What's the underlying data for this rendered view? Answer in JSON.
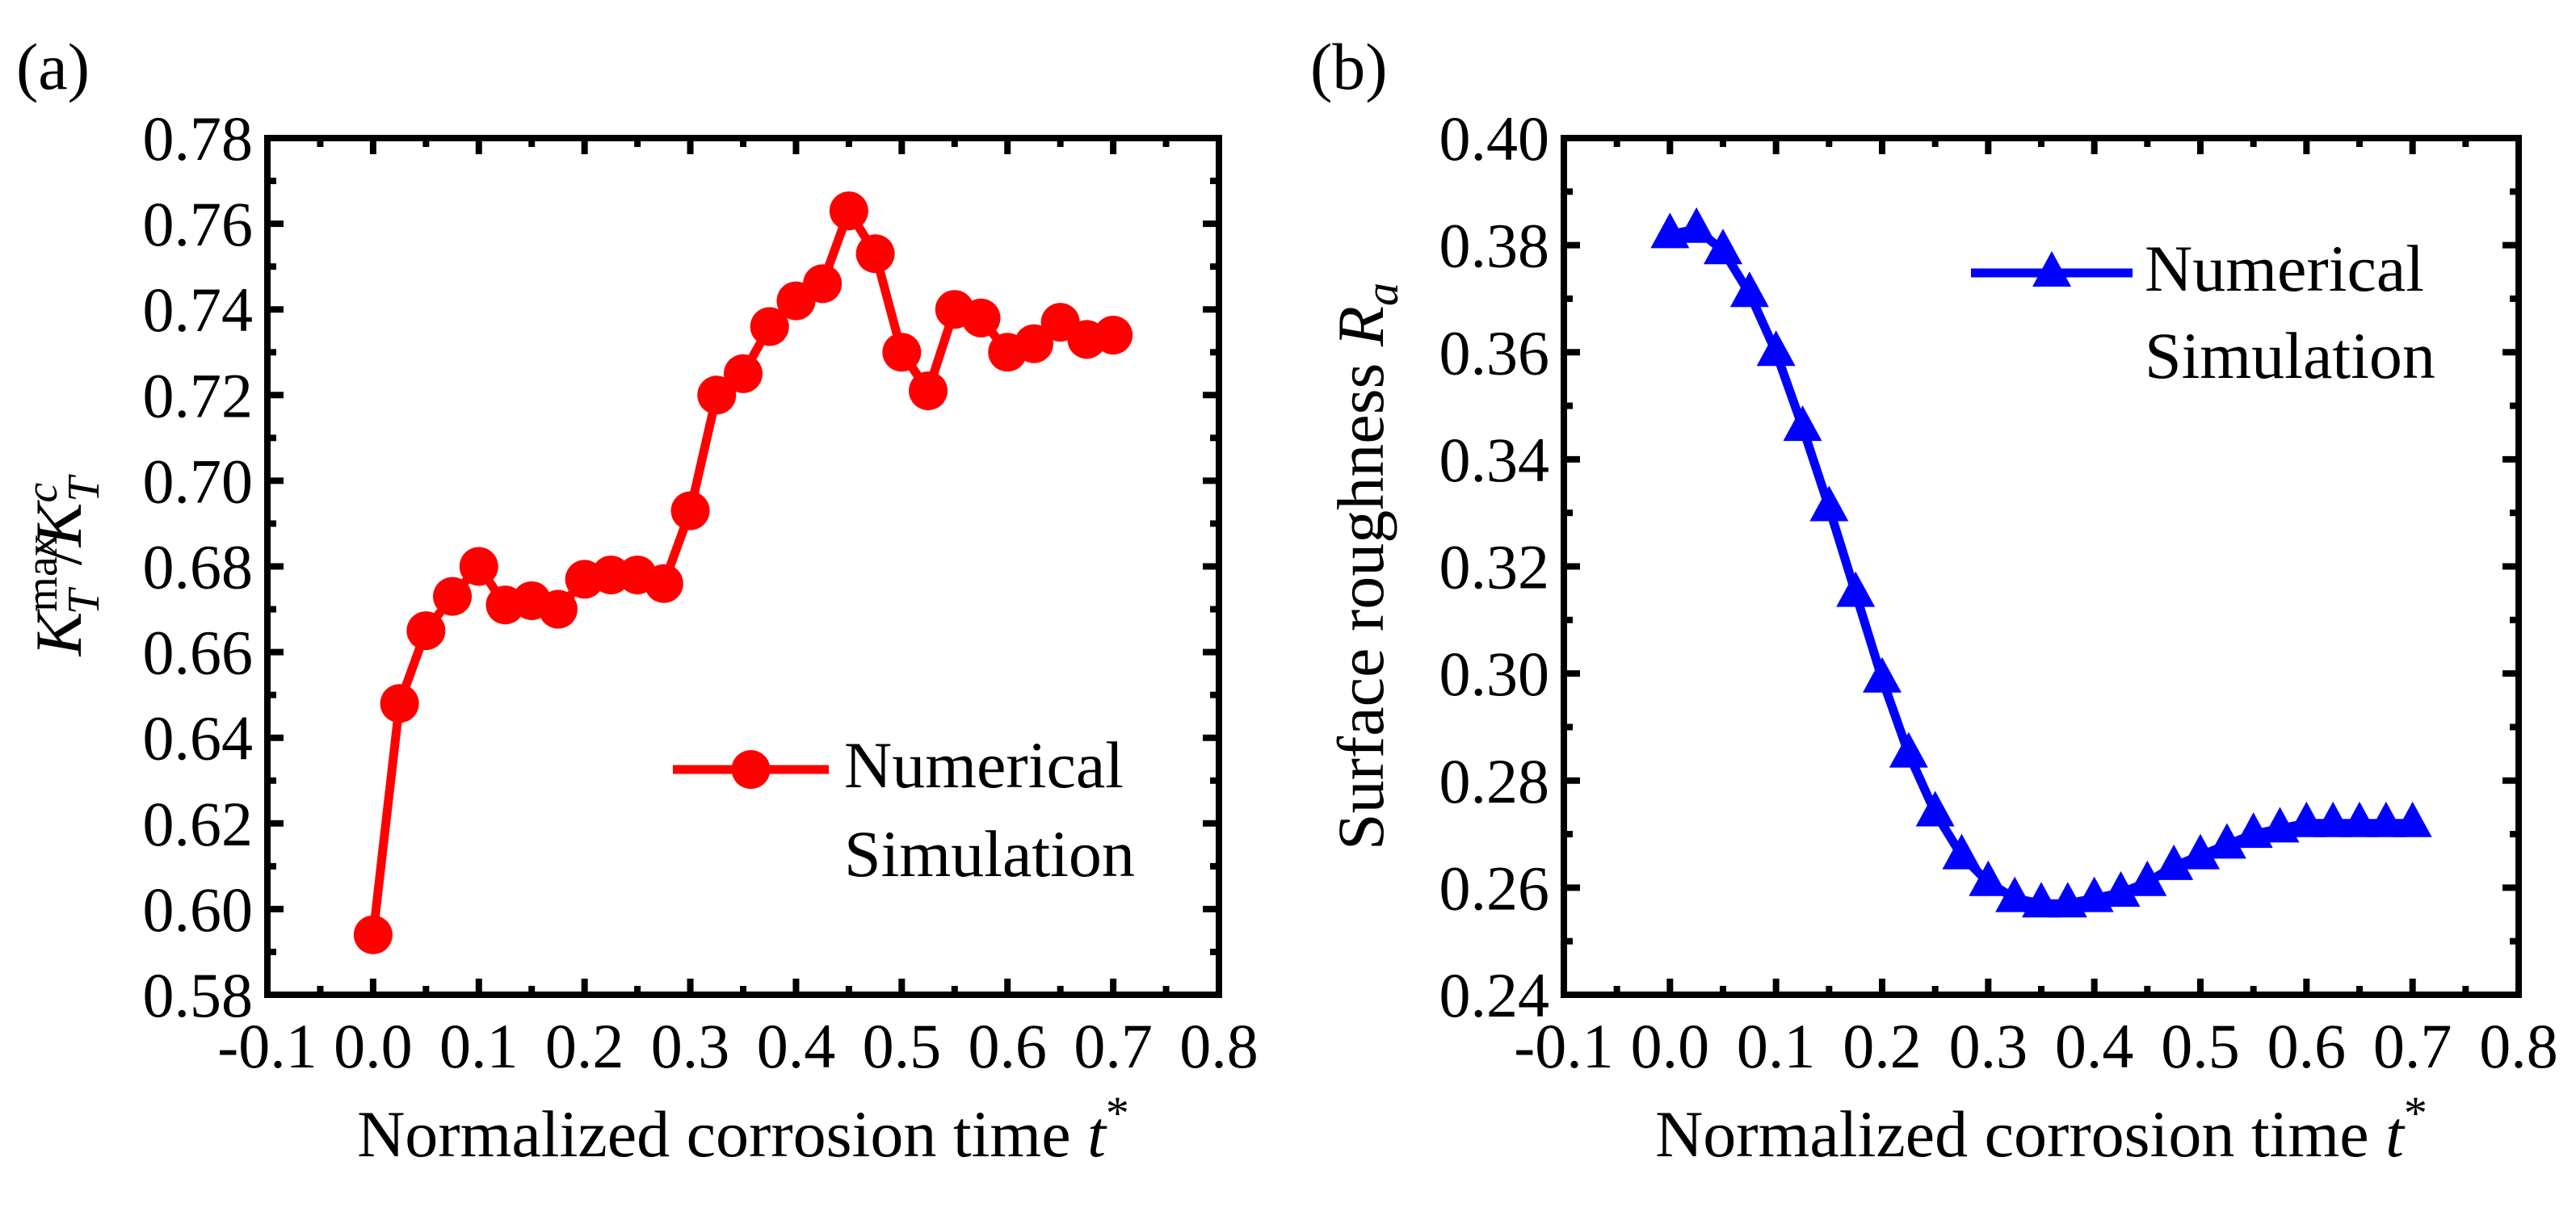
{
  "chart_data": [
    {
      "type": "line",
      "panel_label": "(a)",
      "title": "",
      "xlabel": "Normalized corrosion time",
      "xlabel_var": "t",
      "xlabel_sup": "*",
      "ylabel": {
        "base": "K",
        "sup": "max",
        "sub": "T",
        "sep": "/",
        "base2": "K",
        "sup2": "c",
        "sub2": "T"
      },
      "xlim": [
        -0.1,
        0.8
      ],
      "ylim": [
        0.58,
        0.78
      ],
      "xticks": [
        "-0.1",
        "0.0",
        "0.1",
        "0.2",
        "0.3",
        "0.4",
        "0.5",
        "0.6",
        "0.7",
        "0.8"
      ],
      "yticks": [
        "0.58",
        "0.60",
        "0.62",
        "0.64",
        "0.66",
        "0.68",
        "0.70",
        "0.72",
        "0.74",
        "0.76",
        "0.78"
      ],
      "legend": {
        "placement": "center-right",
        "line1": "Numerical",
        "line2": "Simulation"
      },
      "series": [
        {
          "name": "Numerical Simulation",
          "color": "#ff0000",
          "marker": "circle",
          "x": [
            0,
            0.025,
            0.05,
            0.075,
            0.1,
            0.125,
            0.15,
            0.175,
            0.2,
            0.225,
            0.25,
            0.275,
            0.3,
            0.325,
            0.35,
            0.375,
            0.4,
            0.425,
            0.45,
            0.475,
            0.5,
            0.525,
            0.55,
            0.575,
            0.6,
            0.625,
            0.65,
            0.675,
            0.7
          ],
          "y": [
            0.594,
            0.648,
            0.665,
            0.673,
            0.68,
            0.671,
            0.672,
            0.67,
            0.677,
            0.678,
            0.678,
            0.676,
            0.693,
            0.72,
            0.725,
            0.736,
            0.742,
            0.746,
            0.763,
            0.753,
            0.73,
            0.721,
            0.74,
            0.738,
            0.73,
            0.732,
            0.737,
            0.733,
            0.734
          ]
        }
      ]
    },
    {
      "type": "line",
      "panel_label": "(b)",
      "title": "",
      "xlabel": "Normalized corrosion time",
      "xlabel_var": "t",
      "xlabel_sup": "*",
      "ylabel": {
        "text": "Surface roughness",
        "var": "R",
        "sub": "a"
      },
      "xlim": [
        -0.1,
        0.8
      ],
      "ylim": [
        0.24,
        0.4
      ],
      "xticks": [
        "-0.1",
        "0.0",
        "0.1",
        "0.2",
        "0.3",
        "0.4",
        "0.5",
        "0.6",
        "0.7",
        "0.8"
      ],
      "yticks": [
        "0.24",
        "0.26",
        "0.28",
        "0.30",
        "0.32",
        "0.34",
        "0.36",
        "0.38",
        "0.40"
      ],
      "legend": {
        "placement": "top-right",
        "line1": "Numerical",
        "line2": "Simulation"
      },
      "series": [
        {
          "name": "Numerical Simulation",
          "color": "#0000ff",
          "marker": "triangle",
          "x": [
            0,
            0.025,
            0.05,
            0.075,
            0.1,
            0.125,
            0.15,
            0.175,
            0.2,
            0.225,
            0.25,
            0.275,
            0.3,
            0.325,
            0.35,
            0.375,
            0.4,
            0.425,
            0.45,
            0.475,
            0.5,
            0.525,
            0.55,
            0.575,
            0.6,
            0.625,
            0.65,
            0.675,
            0.7
          ],
          "y": [
            0.382,
            0.383,
            0.379,
            0.371,
            0.36,
            0.346,
            0.331,
            0.315,
            0.299,
            0.285,
            0.274,
            0.266,
            0.261,
            0.258,
            0.257,
            0.257,
            0.258,
            0.259,
            0.261,
            0.264,
            0.266,
            0.268,
            0.27,
            0.271,
            0.272,
            0.272,
            0.272,
            0.272,
            0.272
          ]
        }
      ]
    }
  ]
}
